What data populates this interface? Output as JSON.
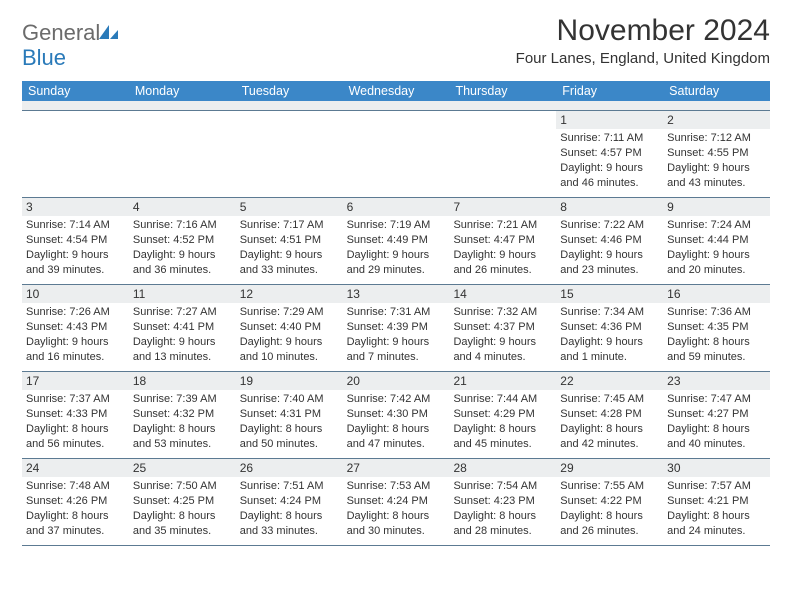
{
  "brand": {
    "general": "General",
    "blue": "Blue"
  },
  "title": "November 2024",
  "location": "Four Lanes, England, United Kingdom",
  "colors": {
    "header_bg": "#3b87c8",
    "header_fg": "#ffffff",
    "spacer_bg": "#eceeef",
    "rule": "#5c7a92",
    "daynum_bg": "#eceeef",
    "text": "#333333",
    "logo_gray": "#6b6b6b",
    "logo_blue": "#2a7ab9"
  },
  "fonts": {
    "title_size_pt": 22,
    "location_size_pt": 11,
    "dayhead_size_pt": 9,
    "cell_size_pt": 8
  },
  "day_names": [
    "Sunday",
    "Monday",
    "Tuesday",
    "Wednesday",
    "Thursday",
    "Friday",
    "Saturday"
  ],
  "weeks": [
    [
      {
        "n": "",
        "empty": true
      },
      {
        "n": "",
        "empty": true
      },
      {
        "n": "",
        "empty": true
      },
      {
        "n": "",
        "empty": true
      },
      {
        "n": "",
        "empty": true
      },
      {
        "n": "1",
        "sr": "Sunrise: 7:11 AM",
        "ss": "Sunset: 4:57 PM",
        "d1": "Daylight: 9 hours",
        "d2": "and 46 minutes."
      },
      {
        "n": "2",
        "sr": "Sunrise: 7:12 AM",
        "ss": "Sunset: 4:55 PM",
        "d1": "Daylight: 9 hours",
        "d2": "and 43 minutes."
      }
    ],
    [
      {
        "n": "3",
        "sr": "Sunrise: 7:14 AM",
        "ss": "Sunset: 4:54 PM",
        "d1": "Daylight: 9 hours",
        "d2": "and 39 minutes."
      },
      {
        "n": "4",
        "sr": "Sunrise: 7:16 AM",
        "ss": "Sunset: 4:52 PM",
        "d1": "Daylight: 9 hours",
        "d2": "and 36 minutes."
      },
      {
        "n": "5",
        "sr": "Sunrise: 7:17 AM",
        "ss": "Sunset: 4:51 PM",
        "d1": "Daylight: 9 hours",
        "d2": "and 33 minutes."
      },
      {
        "n": "6",
        "sr": "Sunrise: 7:19 AM",
        "ss": "Sunset: 4:49 PM",
        "d1": "Daylight: 9 hours",
        "d2": "and 29 minutes."
      },
      {
        "n": "7",
        "sr": "Sunrise: 7:21 AM",
        "ss": "Sunset: 4:47 PM",
        "d1": "Daylight: 9 hours",
        "d2": "and 26 minutes."
      },
      {
        "n": "8",
        "sr": "Sunrise: 7:22 AM",
        "ss": "Sunset: 4:46 PM",
        "d1": "Daylight: 9 hours",
        "d2": "and 23 minutes."
      },
      {
        "n": "9",
        "sr": "Sunrise: 7:24 AM",
        "ss": "Sunset: 4:44 PM",
        "d1": "Daylight: 9 hours",
        "d2": "and 20 minutes."
      }
    ],
    [
      {
        "n": "10",
        "sr": "Sunrise: 7:26 AM",
        "ss": "Sunset: 4:43 PM",
        "d1": "Daylight: 9 hours",
        "d2": "and 16 minutes."
      },
      {
        "n": "11",
        "sr": "Sunrise: 7:27 AM",
        "ss": "Sunset: 4:41 PM",
        "d1": "Daylight: 9 hours",
        "d2": "and 13 minutes."
      },
      {
        "n": "12",
        "sr": "Sunrise: 7:29 AM",
        "ss": "Sunset: 4:40 PM",
        "d1": "Daylight: 9 hours",
        "d2": "and 10 minutes."
      },
      {
        "n": "13",
        "sr": "Sunrise: 7:31 AM",
        "ss": "Sunset: 4:39 PM",
        "d1": "Daylight: 9 hours",
        "d2": "and 7 minutes."
      },
      {
        "n": "14",
        "sr": "Sunrise: 7:32 AM",
        "ss": "Sunset: 4:37 PM",
        "d1": "Daylight: 9 hours",
        "d2": "and 4 minutes."
      },
      {
        "n": "15",
        "sr": "Sunrise: 7:34 AM",
        "ss": "Sunset: 4:36 PM",
        "d1": "Daylight: 9 hours",
        "d2": "and 1 minute."
      },
      {
        "n": "16",
        "sr": "Sunrise: 7:36 AM",
        "ss": "Sunset: 4:35 PM",
        "d1": "Daylight: 8 hours",
        "d2": "and 59 minutes."
      }
    ],
    [
      {
        "n": "17",
        "sr": "Sunrise: 7:37 AM",
        "ss": "Sunset: 4:33 PM",
        "d1": "Daylight: 8 hours",
        "d2": "and 56 minutes."
      },
      {
        "n": "18",
        "sr": "Sunrise: 7:39 AM",
        "ss": "Sunset: 4:32 PM",
        "d1": "Daylight: 8 hours",
        "d2": "and 53 minutes."
      },
      {
        "n": "19",
        "sr": "Sunrise: 7:40 AM",
        "ss": "Sunset: 4:31 PM",
        "d1": "Daylight: 8 hours",
        "d2": "and 50 minutes."
      },
      {
        "n": "20",
        "sr": "Sunrise: 7:42 AM",
        "ss": "Sunset: 4:30 PM",
        "d1": "Daylight: 8 hours",
        "d2": "and 47 minutes."
      },
      {
        "n": "21",
        "sr": "Sunrise: 7:44 AM",
        "ss": "Sunset: 4:29 PM",
        "d1": "Daylight: 8 hours",
        "d2": "and 45 minutes."
      },
      {
        "n": "22",
        "sr": "Sunrise: 7:45 AM",
        "ss": "Sunset: 4:28 PM",
        "d1": "Daylight: 8 hours",
        "d2": "and 42 minutes."
      },
      {
        "n": "23",
        "sr": "Sunrise: 7:47 AM",
        "ss": "Sunset: 4:27 PM",
        "d1": "Daylight: 8 hours",
        "d2": "and 40 minutes."
      }
    ],
    [
      {
        "n": "24",
        "sr": "Sunrise: 7:48 AM",
        "ss": "Sunset: 4:26 PM",
        "d1": "Daylight: 8 hours",
        "d2": "and 37 minutes."
      },
      {
        "n": "25",
        "sr": "Sunrise: 7:50 AM",
        "ss": "Sunset: 4:25 PM",
        "d1": "Daylight: 8 hours",
        "d2": "and 35 minutes."
      },
      {
        "n": "26",
        "sr": "Sunrise: 7:51 AM",
        "ss": "Sunset: 4:24 PM",
        "d1": "Daylight: 8 hours",
        "d2": "and 33 minutes."
      },
      {
        "n": "27",
        "sr": "Sunrise: 7:53 AM",
        "ss": "Sunset: 4:24 PM",
        "d1": "Daylight: 8 hours",
        "d2": "and 30 minutes."
      },
      {
        "n": "28",
        "sr": "Sunrise: 7:54 AM",
        "ss": "Sunset: 4:23 PM",
        "d1": "Daylight: 8 hours",
        "d2": "and 28 minutes."
      },
      {
        "n": "29",
        "sr": "Sunrise: 7:55 AM",
        "ss": "Sunset: 4:22 PM",
        "d1": "Daylight: 8 hours",
        "d2": "and 26 minutes."
      },
      {
        "n": "30",
        "sr": "Sunrise: 7:57 AM",
        "ss": "Sunset: 4:21 PM",
        "d1": "Daylight: 8 hours",
        "d2": "and 24 minutes."
      }
    ]
  ]
}
